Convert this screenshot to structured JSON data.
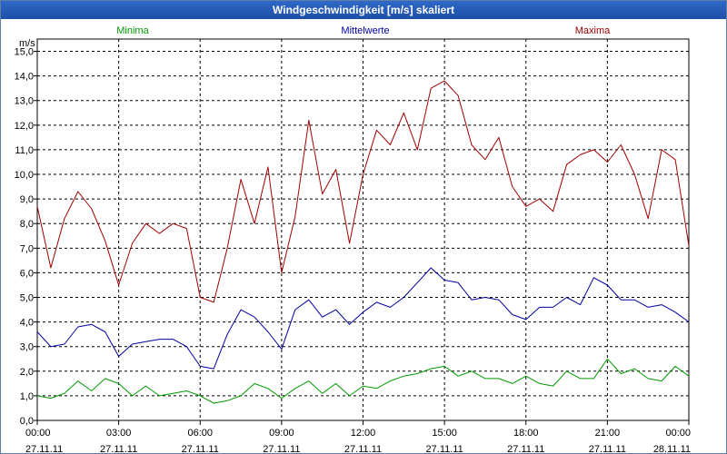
{
  "title": "Windgeschwindigkeit [m/s] skaliert",
  "colors": {
    "titlebar": "#1d4fa8",
    "minima": "#009a00",
    "mittelwerte": "#0000a0",
    "maxima": "#a00000",
    "grid": "#000000"
  },
  "chart_data": {
    "type": "line",
    "title": "Windgeschwindigkeit [m/s] skaliert",
    "ylabel": "m/s",
    "ylim": [
      0,
      15.5
    ],
    "yticks": [
      0,
      1,
      2,
      3,
      4,
      5,
      6,
      7,
      8,
      9,
      10,
      11,
      12,
      13,
      14,
      15
    ],
    "ytick_labels": [
      "0,0",
      "1,0",
      "2,0",
      "3,0",
      "4,0",
      "5,0",
      "6,0",
      "7,0",
      "8,0",
      "9,0",
      "10,0",
      "11,0",
      "12,0",
      "13,0",
      "14,0",
      "15,0"
    ],
    "xlim": [
      0,
      24
    ],
    "xticks": [
      0,
      3,
      6,
      9,
      12,
      15,
      18,
      21,
      24
    ],
    "xtick_times": [
      "00:00",
      "03:00",
      "06:00",
      "09:00",
      "12:00",
      "15:00",
      "18:00",
      "21:00",
      "00:00"
    ],
    "xtick_dates": [
      "27.11.11",
      "27.11.11",
      "27.11.11",
      "27.11.11",
      "27.11.11",
      "27.11.11",
      "27.11.11",
      "27.11.11",
      "28.11.11"
    ],
    "grid": true,
    "legend": [
      "Minima",
      "Mittelwerte",
      "Maxima"
    ],
    "series": [
      {
        "name": "Minima",
        "color": "#009a00",
        "x": [
          0,
          0.5,
          1,
          1.5,
          2,
          2.5,
          3,
          3.5,
          4,
          4.5,
          5,
          5.5,
          6,
          6.5,
          7,
          7.5,
          8,
          8.5,
          9,
          9.5,
          10,
          10.5,
          11,
          11.5,
          12,
          12.5,
          13,
          13.5,
          14,
          14.5,
          15,
          15.5,
          16,
          16.5,
          17,
          17.5,
          18,
          18.5,
          19,
          19.5,
          20,
          20.5,
          21,
          21.5,
          22,
          22.5,
          23,
          23.5,
          24
        ],
        "values": [
          1.0,
          0.9,
          1.1,
          1.6,
          1.2,
          1.7,
          1.5,
          1.0,
          1.4,
          1.0,
          1.1,
          1.2,
          1.0,
          0.7,
          0.8,
          1.0,
          1.5,
          1.3,
          0.9,
          1.3,
          1.6,
          1.1,
          1.5,
          1.0,
          1.4,
          1.3,
          1.6,
          1.8,
          1.9,
          2.1,
          2.2,
          1.8,
          2.0,
          1.7,
          1.7,
          1.5,
          1.8,
          1.5,
          1.4,
          2.0,
          1.7,
          1.7,
          2.5,
          1.9,
          2.1,
          1.7,
          1.6,
          2.2,
          1.8
        ]
      },
      {
        "name": "Mittelwerte",
        "color": "#0000a0",
        "x": [
          0,
          0.5,
          1,
          1.5,
          2,
          2.5,
          3,
          3.5,
          4,
          4.5,
          5,
          5.5,
          6,
          6.5,
          7,
          7.5,
          8,
          8.5,
          9,
          9.5,
          10,
          10.5,
          11,
          11.5,
          12,
          12.5,
          13,
          13.5,
          14,
          14.5,
          15,
          15.5,
          16,
          16.5,
          17,
          17.5,
          18,
          18.5,
          19,
          19.5,
          20,
          20.5,
          21,
          21.5,
          22,
          22.5,
          23,
          23.5,
          24
        ],
        "values": [
          3.6,
          3.0,
          3.1,
          3.8,
          3.9,
          3.6,
          2.6,
          3.1,
          3.2,
          3.3,
          3.3,
          3.0,
          2.2,
          2.1,
          3.5,
          4.5,
          4.2,
          3.6,
          2.9,
          4.5,
          4.9,
          4.2,
          4.5,
          3.9,
          4.4,
          4.8,
          4.6,
          5.0,
          5.6,
          6.2,
          5.7,
          5.6,
          4.9,
          5.0,
          4.9,
          4.3,
          4.1,
          4.6,
          4.6,
          5.0,
          4.7,
          5.8,
          5.5,
          4.9,
          4.9,
          4.6,
          4.7,
          4.4,
          4.0
        ]
      },
      {
        "name": "Maxima",
        "color": "#a00000",
        "x": [
          0,
          0.5,
          1,
          1.5,
          2,
          2.5,
          3,
          3.5,
          4,
          4.5,
          5,
          5.5,
          6,
          6.5,
          7,
          7.5,
          8,
          8.5,
          9,
          9.5,
          10,
          10.5,
          11,
          11.5,
          12,
          12.5,
          13,
          13.5,
          14,
          14.5,
          15,
          15.5,
          16,
          16.5,
          17,
          17.5,
          18,
          18.5,
          19,
          19.5,
          20,
          20.5,
          21,
          21.5,
          22,
          22.5,
          23,
          23.5,
          24
        ],
        "values": [
          8.7,
          6.2,
          8.2,
          9.3,
          8.6,
          7.3,
          5.5,
          7.2,
          8.0,
          7.6,
          8.0,
          7.8,
          5.0,
          4.8,
          7.0,
          9.8,
          8.0,
          10.3,
          6.0,
          8.3,
          12.2,
          9.2,
          10.2,
          7.2,
          10.0,
          11.8,
          11.2,
          12.5,
          11.0,
          13.5,
          13.8,
          13.2,
          11.2,
          10.6,
          11.5,
          9.5,
          8.7,
          9.0,
          8.5,
          10.4,
          10.8,
          11.0,
          10.5,
          11.2,
          10.0,
          8.2,
          11.0,
          10.6,
          7.1
        ]
      }
    ]
  }
}
